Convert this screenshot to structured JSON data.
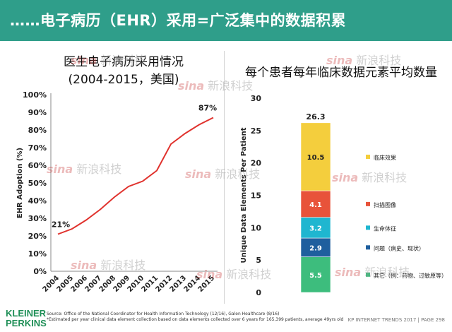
{
  "header": {
    "title": "……电子病历（EHR）采用=广泛集中的数据积累"
  },
  "watermark": {
    "brand": "sina",
    "text": "新浪科技"
  },
  "left_title_line1": "医生电子病历采用情况",
  "left_title_line2": "(2004-2015，美国)",
  "right_title": "每个患者每年临床数据元素平均数量",
  "footer": {
    "logo_line1": "KLEINER",
    "logo_line2": "PERKINS",
    "source_line1": "Source: Office of the National Coordinator for Health Information Technology (12/16), Galen Healthcare (8/16)",
    "source_line2": "*Estimated per year clinical data element collection based on data elements collected over 6 years for 165,399 patients, average 49yrs old",
    "page_ref": "KP INTERNET TRENDS 2017  |  PAGE 298"
  },
  "chart_data": [
    {
      "type": "line",
      "title": "医生电子病历采用情况 (2004-2015，美国)",
      "ylabel": "EHR Adoption (%)",
      "xlabel": "",
      "x": [
        "2004",
        "2005",
        "2006",
        "2007",
        "2008",
        "2009",
        "2010",
        "2011",
        "2012",
        "2013",
        "2014",
        "2015"
      ],
      "values": [
        21,
        24,
        29,
        35,
        42,
        48,
        51,
        57,
        72,
        78,
        83,
        87
      ],
      "ylim": [
        0,
        100
      ],
      "yticks": [
        "0%",
        "10%",
        "20%",
        "30%",
        "40%",
        "50%",
        "60%",
        "70%",
        "80%",
        "90%",
        "100%"
      ],
      "data_labels": [
        {
          "index": 0,
          "text": "21%"
        },
        {
          "index": 11,
          "text": "87%"
        }
      ],
      "color": "#e0322d",
      "grid": false
    },
    {
      "type": "bar",
      "stacked": true,
      "title": "每个患者每年临床数据元素平均数量",
      "ylabel": "Unique Data Elements Per Patient",
      "ylim": [
        0,
        30
      ],
      "yticks": [
        "0",
        "5",
        "10",
        "15",
        "20",
        "25",
        "30"
      ],
      "total": 26.3,
      "total_label": "26.3",
      "series": [
        {
          "name": "其它（例：药物、过敏原等）",
          "value": 5.5,
          "label": "5.5",
          "color": "#3dbd7d"
        },
        {
          "name": "问题（病史、现状）",
          "value": 2.9,
          "label": "2.9",
          "color": "#1f5f9e"
        },
        {
          "name": "生命体征",
          "value": 3.2,
          "label": "3.2",
          "color": "#1fb6d0"
        },
        {
          "name": "扫描图像",
          "value": 4.1,
          "label": "4.1",
          "color": "#e8533a"
        },
        {
          "name": "临床效果",
          "value": 10.5,
          "label": "10.5",
          "color": "#f4ce3d"
        }
      ],
      "grid": false
    }
  ]
}
